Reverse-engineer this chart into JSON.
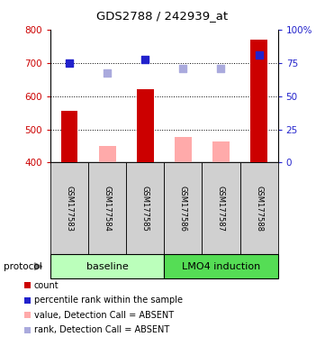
{
  "title": "GDS2788 / 242939_at",
  "samples": [
    "GSM177583",
    "GSM177584",
    "GSM177585",
    "GSM177586",
    "GSM177587",
    "GSM177588"
  ],
  "bar_values": [
    555,
    450,
    620,
    478,
    463,
    770
  ],
  "bar_colors": [
    "#cc0000",
    "#ffaaaa",
    "#cc0000",
    "#ffaaaa",
    "#ffaaaa",
    "#cc0000"
  ],
  "dot_values": [
    700,
    670,
    710,
    682,
    682,
    722
  ],
  "dot_colors": [
    "#2222cc",
    "#aaaadd",
    "#2222cc",
    "#aaaadd",
    "#aaaadd",
    "#2222cc"
  ],
  "protocol_groups": [
    {
      "label": "baseline",
      "start": 0,
      "end": 3,
      "color": "#bbffbb"
    },
    {
      "label": "LMO4 induction",
      "start": 3,
      "end": 6,
      "color": "#55dd55"
    }
  ],
  "ylim_left": [
    400,
    800
  ],
  "ylim_right": [
    0,
    100
  ],
  "yticks_left": [
    400,
    500,
    600,
    700,
    800
  ],
  "yticks_right": [
    0,
    25,
    50,
    75,
    100
  ],
  "ytick_labels_right": [
    "0",
    "25",
    "50",
    "75",
    "100%"
  ],
  "grid_values": [
    500,
    600,
    700
  ],
  "bar_bottom": 400,
  "legend_items": [
    {
      "label": "count",
      "color": "#cc0000",
      "type": "square"
    },
    {
      "label": "percentile rank within the sample",
      "color": "#2222cc",
      "type": "square"
    },
    {
      "label": "value, Detection Call = ABSENT",
      "color": "#ffaaaa",
      "type": "square"
    },
    {
      "label": "rank, Detection Call = ABSENT",
      "color": "#aaaadd",
      "type": "square"
    }
  ],
  "protocol_label": "protocol",
  "bar_width": 0.45,
  "dot_size": 40,
  "sample_box_color": "#d0d0d0"
}
